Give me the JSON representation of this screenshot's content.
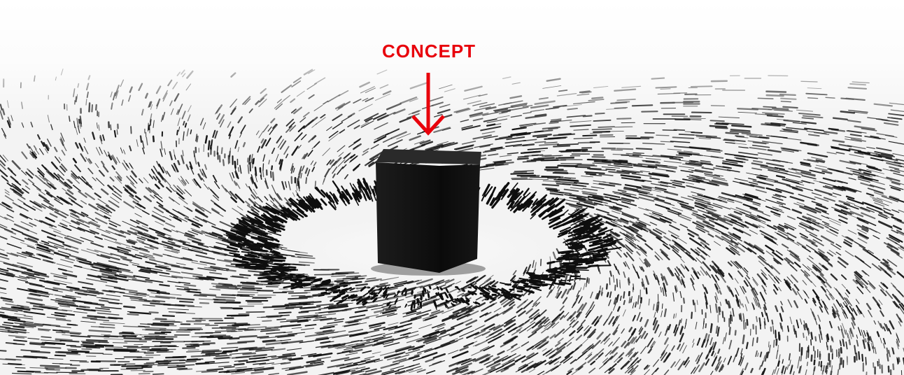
{
  "annotation": {
    "label": "CONCEPT",
    "color": "#e8000b"
  },
  "photo": {
    "subject": "magnet-cube-with-iron-filings",
    "colors": {
      "background": "#f4f4f4",
      "filings": "#151515",
      "cube": "#121212"
    }
  }
}
